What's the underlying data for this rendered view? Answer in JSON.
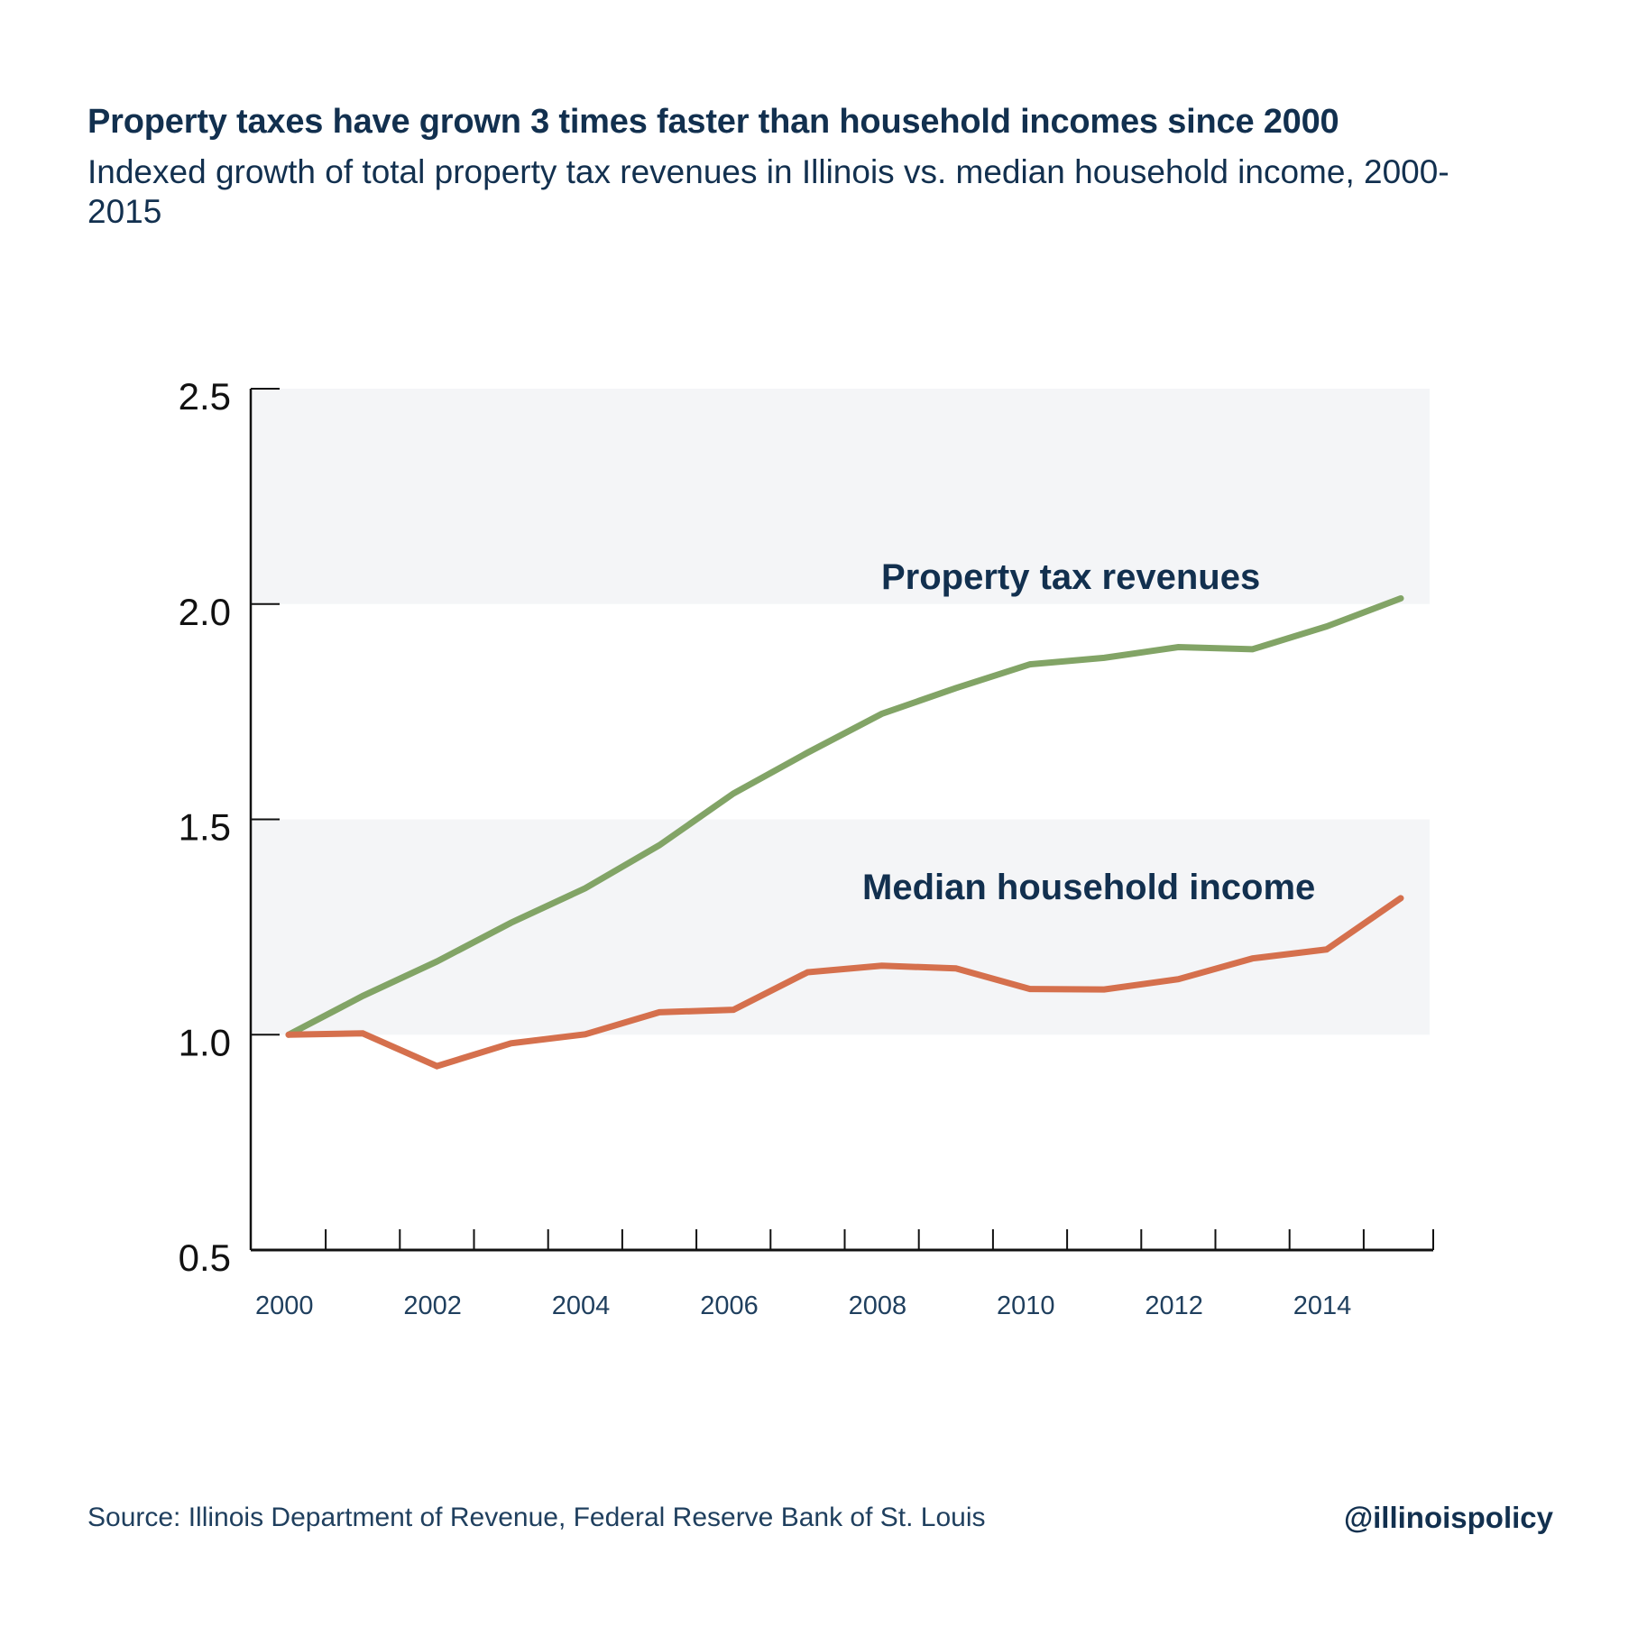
{
  "header": {
    "title": "Property taxes have grown 3 times faster than household incomes since 2000",
    "subtitle": "Indexed growth of total property tax revenues in Illinois vs. median household income, 2000-2015"
  },
  "footer": {
    "source": "Source:  Illinois Department of Revenue, Federal Reserve Bank of St. Louis",
    "handle": "@illinoispolicy"
  },
  "colors": {
    "property_tax": "#82a466",
    "household_income": "#d5704d",
    "band": "#f4f5f7",
    "text": "#12304f",
    "axis": "#111111"
  },
  "chart_data": {
    "type": "line",
    "title": "Property taxes have grown 3 times faster than household incomes since 2000",
    "subtitle": "Indexed growth of total property tax revenues in Illinois vs. median household income, 2000-2015",
    "xlabel": "",
    "ylabel": "",
    "x": [
      2000,
      2001,
      2002,
      2003,
      2004,
      2005,
      2006,
      2007,
      2008,
      2009,
      2010,
      2011,
      2012,
      2013,
      2014,
      2015
    ],
    "xlim": [
      2000,
      2015
    ],
    "ylim": [
      0.5,
      2.5
    ],
    "yticks": [
      0.5,
      1.0,
      1.5,
      2.0,
      2.5
    ],
    "ytick_labels": [
      "0.5",
      "1.0",
      "1.5",
      "2.0",
      "2.5"
    ],
    "xtick_labels": [
      {
        "year": 2000,
        "label": "2000"
      },
      {
        "year": 2002,
        "label": "2002"
      },
      {
        "year": 2004,
        "label": "2004"
      },
      {
        "year": 2006,
        "label": "2006"
      },
      {
        "year": 2008,
        "label": "2008"
      },
      {
        "year": 2010,
        "label": "2010"
      },
      {
        "year": 2012,
        "label": "2012"
      },
      {
        "year": 2014,
        "label": "2014"
      }
    ],
    "shaded_bands": [
      [
        2.0,
        2.5
      ],
      [
        1.0,
        1.5
      ]
    ],
    "grid": false,
    "legend": "direct-labels",
    "series": [
      {
        "name": "Property tax revenues",
        "label": "Property tax revenues",
        "color": "#82a466",
        "values": [
          1.0,
          1.09,
          1.17,
          1.26,
          1.34,
          1.44,
          1.56,
          1.655,
          1.745,
          1.805,
          1.86,
          1.875,
          1.9,
          1.895,
          1.948,
          2.013
        ]
      },
      {
        "name": "Median household income",
        "label": "Median household income",
        "color": "#d5704d",
        "values": [
          1.0,
          1.003,
          0.927,
          0.98,
          1.001,
          1.052,
          1.058,
          1.145,
          1.16,
          1.154,
          1.106,
          1.105,
          1.129,
          1.177,
          1.198,
          1.317
        ]
      }
    ]
  }
}
